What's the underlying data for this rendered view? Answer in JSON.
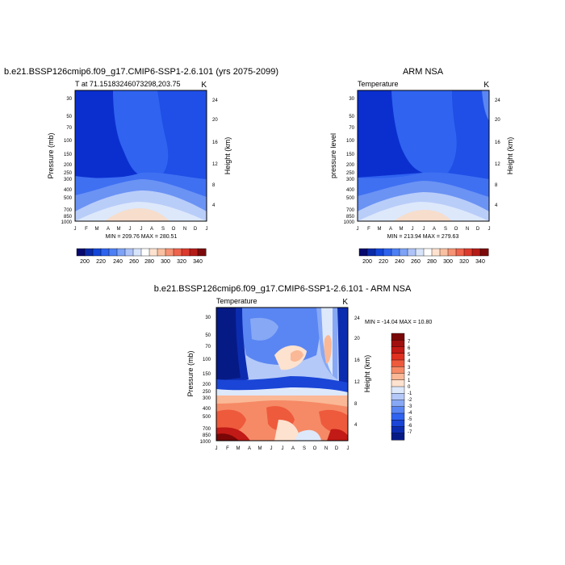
{
  "chart_data": [
    {
      "type": "heatmap",
      "title": "b.e21.BSSP126cmip6.f09_g17.CMIP6-SSP1-2.6.101 (yrs 2075-2099)",
      "left_label": "T at 71.15183246073298,203.75",
      "right_label": "K",
      "ylabel": "Pressure (mb)",
      "y2label": "Height (km)",
      "x_ticks": [
        "J",
        "F",
        "M",
        "A",
        "M",
        "J",
        "J",
        "A",
        "S",
        "O",
        "N",
        "D",
        "J"
      ],
      "y_ticks": [
        30,
        50,
        70,
        100,
        150,
        200,
        250,
        300,
        400,
        500,
        700,
        850,
        1000
      ],
      "y2_ticks": [
        24,
        20,
        16,
        12,
        8,
        4
      ],
      "minmax_text": "MIN = 209.76 MAX = 280.51",
      "min": 209.76,
      "max": 280.51,
      "colorbar": {
        "ticks": [
          200,
          220,
          240,
          260,
          280,
          300,
          320,
          340
        ]
      },
      "colors": {
        "deep_blue": "#0b2fcf",
        "mid_blue": "#1f4fe6",
        "blue": "#2f63f0",
        "light_blue": "#5a86f3",
        "pale_blue": "#b9cdf9",
        "warm": "#f6ddcc"
      }
    },
    {
      "type": "heatmap",
      "title": "ARM NSA",
      "left_label": "Temperature",
      "right_label": "K",
      "ylabel": "pressure level",
      "y2label": "Height (km)",
      "x_ticks": [
        "J",
        "F",
        "M",
        "A",
        "M",
        "J",
        "J",
        "A",
        "S",
        "O",
        "N",
        "D",
        "J"
      ],
      "y_ticks": [
        30,
        50,
        70,
        100,
        150,
        200,
        250,
        300,
        400,
        500,
        700,
        850,
        1000
      ],
      "y2_ticks": [
        24,
        20,
        16,
        12,
        8,
        4
      ],
      "minmax_text": "MIN = 213.94 MAX = 279.63",
      "min": 213.94,
      "max": 279.63,
      "colorbar": {
        "ticks": [
          200,
          220,
          240,
          260,
          280,
          300,
          320,
          340
        ]
      }
    },
    {
      "type": "heatmap",
      "title": "b.e21.BSSP126cmip6.f09_g17.CMIP6-SSP1-2.6.101 - ARM NSA",
      "left_label": "Temperature",
      "right_label": "K",
      "ylabel": "Pressure (mb)",
      "y2label": "Height (km)",
      "x_ticks": [
        "J",
        "F",
        "M",
        "A",
        "M",
        "J",
        "J",
        "A",
        "S",
        "O",
        "N",
        "D",
        "J"
      ],
      "y_ticks": [
        30,
        50,
        70,
        100,
        150,
        200,
        250,
        300,
        400,
        500,
        700,
        850,
        1000
      ],
      "y2_ticks": [
        24,
        20,
        16,
        12,
        8,
        4
      ],
      "minmax_text": "MIN = -14.04 MAX =  10.80",
      "min": -14.04,
      "max": 10.8,
      "colorbar": {
        "ticks": [
          7,
          6,
          5,
          4,
          3,
          2,
          1,
          0,
          -1,
          -2,
          -3,
          -4,
          -5,
          -6,
          -7
        ]
      }
    }
  ],
  "colorbar_colors": {
    "absolute": [
      "#08096e",
      "#0b2aa8",
      "#1346d8",
      "#2e63ee",
      "#4d80f4",
      "#7da2f6",
      "#aec4f8",
      "#d8e4fa",
      "#ffffff",
      "#fde2cf",
      "#f9c0a2",
      "#f59374",
      "#ee644c",
      "#dc3a2c",
      "#b51c18",
      "#7d0a0a"
    ],
    "difference": [
      "#7a0707",
      "#a11010",
      "#c21a16",
      "#df3020",
      "#ee5a3c",
      "#f68a66",
      "#fab896",
      "#fde2cf",
      "#dde8fb",
      "#b4c9f8",
      "#87a8f5",
      "#5a86f3",
      "#2f63f0",
      "#1a45d6",
      "#0c2cb0",
      "#061a86"
    ]
  }
}
